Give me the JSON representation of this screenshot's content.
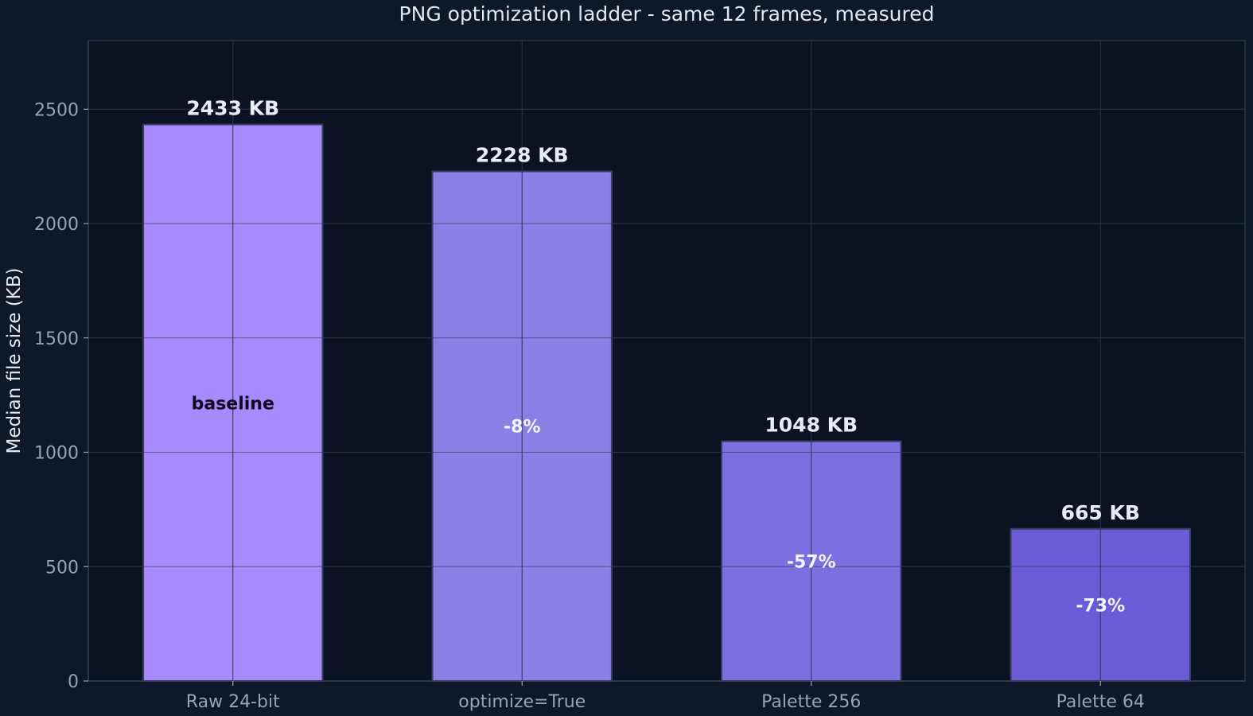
{
  "chart_data": {
    "type": "bar",
    "title": "PNG optimization ladder - same 12 frames, measured",
    "xlabel": "",
    "ylabel": "Median file size (KB)",
    "categories": [
      "Raw 24-bit",
      "optimize=True",
      "Palette 256",
      "Palette 64"
    ],
    "values": [
      2433,
      2228,
      1048,
      665
    ],
    "value_labels": [
      "2433 KB",
      "2228 KB",
      "1048 KB",
      "665 KB"
    ],
    "inner_labels": [
      "baseline",
      "-8%",
      "-57%",
      "-73%"
    ],
    "ylim": [
      0,
      2800
    ],
    "yticks": [
      0,
      500,
      1000,
      1500,
      2000,
      2500
    ],
    "grid": true,
    "legend": "none",
    "colors": {
      "page_background": "#0f172a",
      "plot_background": "#0b1222",
      "grid": "#243247",
      "axis": "#334155",
      "title_text": "#e2e8f0",
      "tick_text": "#94a3b8",
      "value_label_text": "#e8edf5",
      "inner_label_light": "#f1f5f9",
      "inner_label_dark": "#0f0a24",
      "bar_edge": "#3b3d66",
      "bars": [
        "#a78bfa",
        "#8b7fe6",
        "#7c6fe0",
        "#6b5bd6"
      ]
    }
  }
}
